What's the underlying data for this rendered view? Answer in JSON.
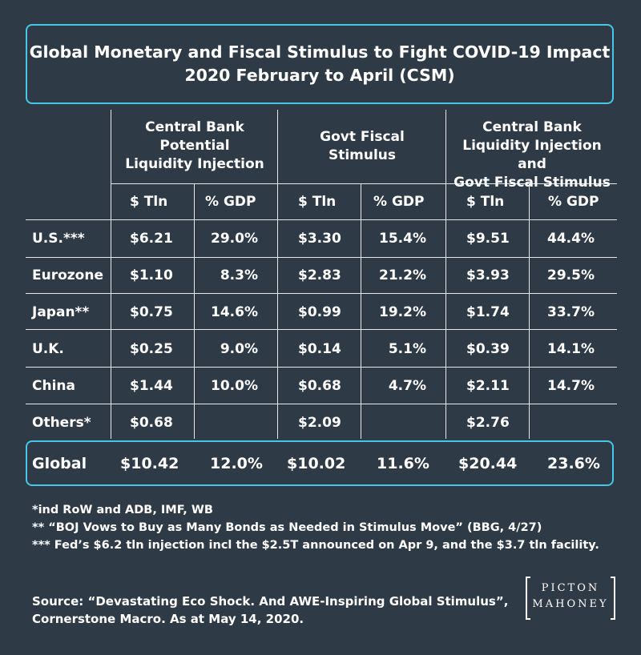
{
  "title": {
    "line1": "Global Monetary and Fiscal Stimulus to Fight COVID-19 Impact",
    "line2": "2020 February to April (CSM)"
  },
  "groups": [
    {
      "line1": "Central Bank",
      "line2": "Potential",
      "line3": "Liquidity Injection"
    },
    {
      "line1": "Govt Fiscal",
      "line2": "Stimulus",
      "line3": ""
    },
    {
      "line1": "Central Bank",
      "line2": "Liquidity Injection and",
      "line3": "Govt Fiscal Stimulus"
    }
  ],
  "subheaders": [
    "$ Tln",
    "% GDP",
    "$ Tln",
    "% GDP",
    "$ Tln",
    "% GDP"
  ],
  "rows": [
    {
      "label": "U.S.***",
      "values": [
        "$6.21",
        "29.0%",
        "$3.30",
        "15.4%",
        "$9.51",
        "44.4%"
      ]
    },
    {
      "label": "Eurozone",
      "values": [
        "$1.10",
        "8.3%",
        "$2.83",
        "21.2%",
        "$3.93",
        "29.5%"
      ]
    },
    {
      "label": "Japan**",
      "values": [
        "$0.75",
        "14.6%",
        "$0.99",
        "19.2%",
        "$1.74",
        "33.7%"
      ]
    },
    {
      "label": "U.K.",
      "values": [
        "$0.25",
        "9.0%",
        "$0.14",
        "5.1%",
        "$0.39",
        "14.1%"
      ]
    },
    {
      "label": "China",
      "values": [
        "$1.44",
        "10.0%",
        "$0.68",
        "4.7%",
        "$2.11",
        "14.7%"
      ]
    },
    {
      "label": "Others*",
      "values": [
        "$0.68",
        "",
        "$2.09",
        "",
        "$2.76",
        ""
      ]
    }
  ],
  "global": {
    "label": "Global",
    "values": [
      "$10.42",
      "12.0%",
      "$10.02",
      "11.6%",
      "$20.44",
      "23.6%"
    ]
  },
  "notes": [
    "*ind RoW and ADB, IMF, WB",
    "** “BOJ Vows to Buy as Many Bonds as Needed in Stimulus Move” (BBG, 4/27)",
    "*** Fed’s $6.2 tln injection incl the $2.5T announced on Apr 9, and the $3.7 tln facility."
  ],
  "source": {
    "line1": "Source: “Devastating Eco Shock. And AWE-Inspiring Global Stimulus”,",
    "line2": "Cornerstone Macro. As at May 14, 2020."
  },
  "logo": {
    "line1": "PICTON",
    "line2": "MAHONEY"
  },
  "colors": {
    "background": "#2f3a47",
    "accent": "#45c8e8",
    "grid": "#e6e9ec"
  }
}
